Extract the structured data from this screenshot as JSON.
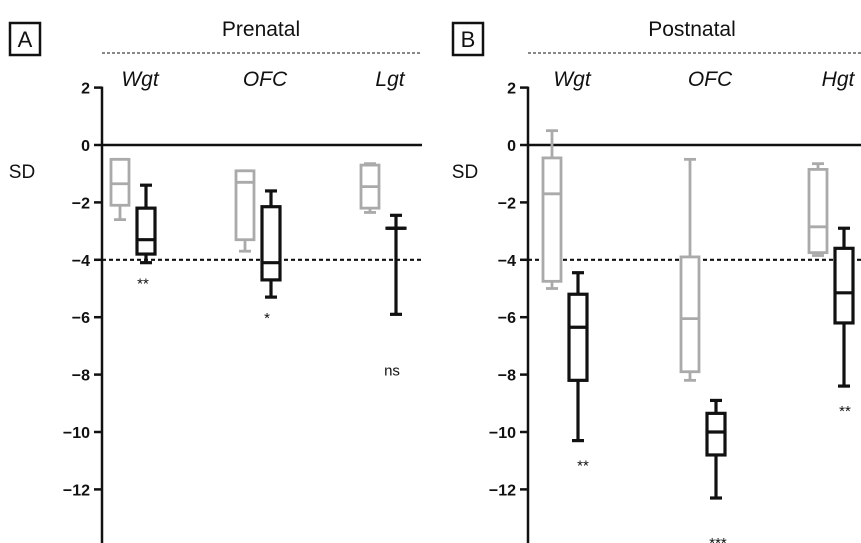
{
  "chart_data": [
    {
      "type": "box",
      "panel_label": "A",
      "title": "Prenatal",
      "ylabel": "SD",
      "ylim": [
        -13.5,
        2.5
      ],
      "yticks": [
        2,
        0,
        -2,
        -4,
        -6,
        -8,
        -10,
        -12
      ],
      "ytick_labels": [
        "2",
        "0",
        "−2",
        "−4",
        "−6",
        "−8",
        "−10",
        "−12"
      ],
      "reference_lines": [
        0,
        -4
      ],
      "groups": [
        {
          "label": "Wgt",
          "significance": "**",
          "boxes": [
            {
              "color": "#aaaaaa",
              "min": -2.6,
              "q1": -2.1,
              "median": -1.35,
              "q3": -0.5,
              "max": -0.5
            },
            {
              "color": "#111111",
              "min": -4.1,
              "q1": -3.8,
              "median": -3.3,
              "q3": -2.2,
              "max": -1.4
            }
          ]
        },
        {
          "label": "OFC",
          "significance": "*",
          "boxes": [
            {
              "color": "#aaaaaa",
              "min": -3.7,
              "q1": -3.3,
              "median": -1.3,
              "q3": -0.9,
              "max": -0.9
            },
            {
              "color": "#111111",
              "min": -5.3,
              "q1": -4.7,
              "median": -4.1,
              "q3": -2.15,
              "max": -1.6
            }
          ]
        },
        {
          "label": "Lgt",
          "significance": "ns",
          "boxes": [
            {
              "color": "#aaaaaa",
              "min": -2.35,
              "q1": -2.2,
              "median": -1.45,
              "q3": -0.7,
              "max": -0.65
            },
            {
              "color": "#111111",
              "min": -5.9,
              "q1": -2.9,
              "median": -2.9,
              "q3": -2.9,
              "max": -2.45
            }
          ]
        }
      ]
    },
    {
      "type": "box",
      "panel_label": "B",
      "title": "Postnatal",
      "ylabel": "SD",
      "ylim": [
        -13.5,
        2.5
      ],
      "yticks": [
        2,
        0,
        -2,
        -4,
        -6,
        -8,
        -10,
        -12
      ],
      "ytick_labels": [
        "2",
        "0",
        "−2",
        "−4",
        "−6",
        "−8",
        "−10",
        "−12"
      ],
      "reference_lines": [
        0,
        -4
      ],
      "groups": [
        {
          "label": "Wgt",
          "significance": "**",
          "boxes": [
            {
              "color": "#aaaaaa",
              "min": -5.0,
              "q1": -4.75,
              "median": -1.7,
              "q3": -0.45,
              "max": 0.5
            },
            {
              "color": "#111111",
              "min": -10.3,
              "q1": -8.2,
              "median": -6.35,
              "q3": -5.2,
              "max": -4.45
            }
          ]
        },
        {
          "label": "OFC",
          "significance": "***",
          "boxes": [
            {
              "color": "#aaaaaa",
              "min": -8.2,
              "q1": -7.9,
              "median": -6.05,
              "q3": -3.9,
              "max": -0.5
            },
            {
              "color": "#111111",
              "min": -12.3,
              "q1": -10.8,
              "median": -10.0,
              "q3": -9.35,
              "max": -8.9
            }
          ]
        },
        {
          "label": "Hgt",
          "significance": "**",
          "boxes": [
            {
              "color": "#aaaaaa",
              "min": -3.85,
              "q1": -3.75,
              "median": -2.85,
              "q3": -0.85,
              "max": -0.65
            },
            {
              "color": "#111111",
              "min": -8.4,
              "q1": -6.2,
              "median": -5.15,
              "q3": -3.6,
              "max": -2.9
            }
          ]
        }
      ]
    }
  ]
}
